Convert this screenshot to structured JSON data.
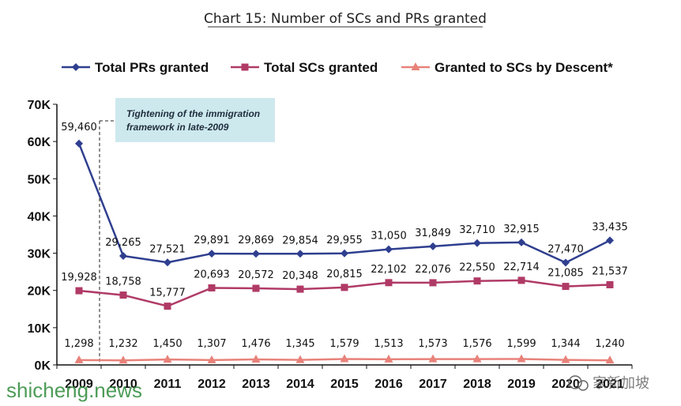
{
  "chart_data": {
    "type": "line",
    "title": "Chart 15: Number of SCs and PRs granted",
    "categories": [
      "2009",
      "2010",
      "2011",
      "2012",
      "2013",
      "2014",
      "2015",
      "2016",
      "2017",
      "2018",
      "2019",
      "2020",
      "2021"
    ],
    "ylim": [
      0,
      70000
    ],
    "yticks": [
      "0K",
      "10K",
      "20K",
      "30K",
      "40K",
      "50K",
      "60K",
      "70K"
    ],
    "ytick_values": [
      0,
      10000,
      20000,
      30000,
      40000,
      50000,
      60000,
      70000
    ],
    "legend_position": "top",
    "series": [
      {
        "name": "Total PRs granted",
        "color": "#2f3f8f",
        "marker": "diamond",
        "values": [
          59460,
          29265,
          27521,
          29891,
          29869,
          29854,
          29955,
          31050,
          31849,
          32710,
          32915,
          27470,
          33435
        ],
        "labels": [
          "59,460",
          "29,265",
          "27,521",
          "29,891",
          "29,869",
          "29,854",
          "29,955",
          "31,050",
          "31,849",
          "32,710",
          "32,915",
          "27,470",
          "33,435"
        ]
      },
      {
        "name": "Total SCs granted",
        "color": "#b03a66",
        "marker": "square",
        "values": [
          19928,
          18758,
          15777,
          20693,
          20572,
          20348,
          20815,
          22102,
          22076,
          22550,
          22714,
          21085,
          21537
        ],
        "labels": [
          "19,928",
          "18,758",
          "15,777",
          "20,693",
          "20,572",
          "20,348",
          "20,815",
          "22,102",
          "22,076",
          "22,550",
          "22,714",
          "21,085",
          "21,537"
        ]
      },
      {
        "name": "Granted to SCs by Descent*",
        "color": "#e8827a",
        "marker": "triangle",
        "values": [
          1298,
          1232,
          1450,
          1307,
          1476,
          1345,
          1579,
          1513,
          1573,
          1576,
          1599,
          1344,
          1240
        ],
        "labels": [
          "1,298",
          "1,232",
          "1,450",
          "1,307",
          "1,476",
          "1,345",
          "1,579",
          "1,513",
          "1,573",
          "1,576",
          "1,599",
          "1,344",
          "1,240"
        ]
      }
    ],
    "annotation": {
      "lines": [
        "Tightening of the immigration",
        "framework in late-2009"
      ],
      "color": "#cde9ee"
    }
  },
  "watermark": {
    "site": "shicheng.news",
    "wechat": "家新加坡"
  }
}
